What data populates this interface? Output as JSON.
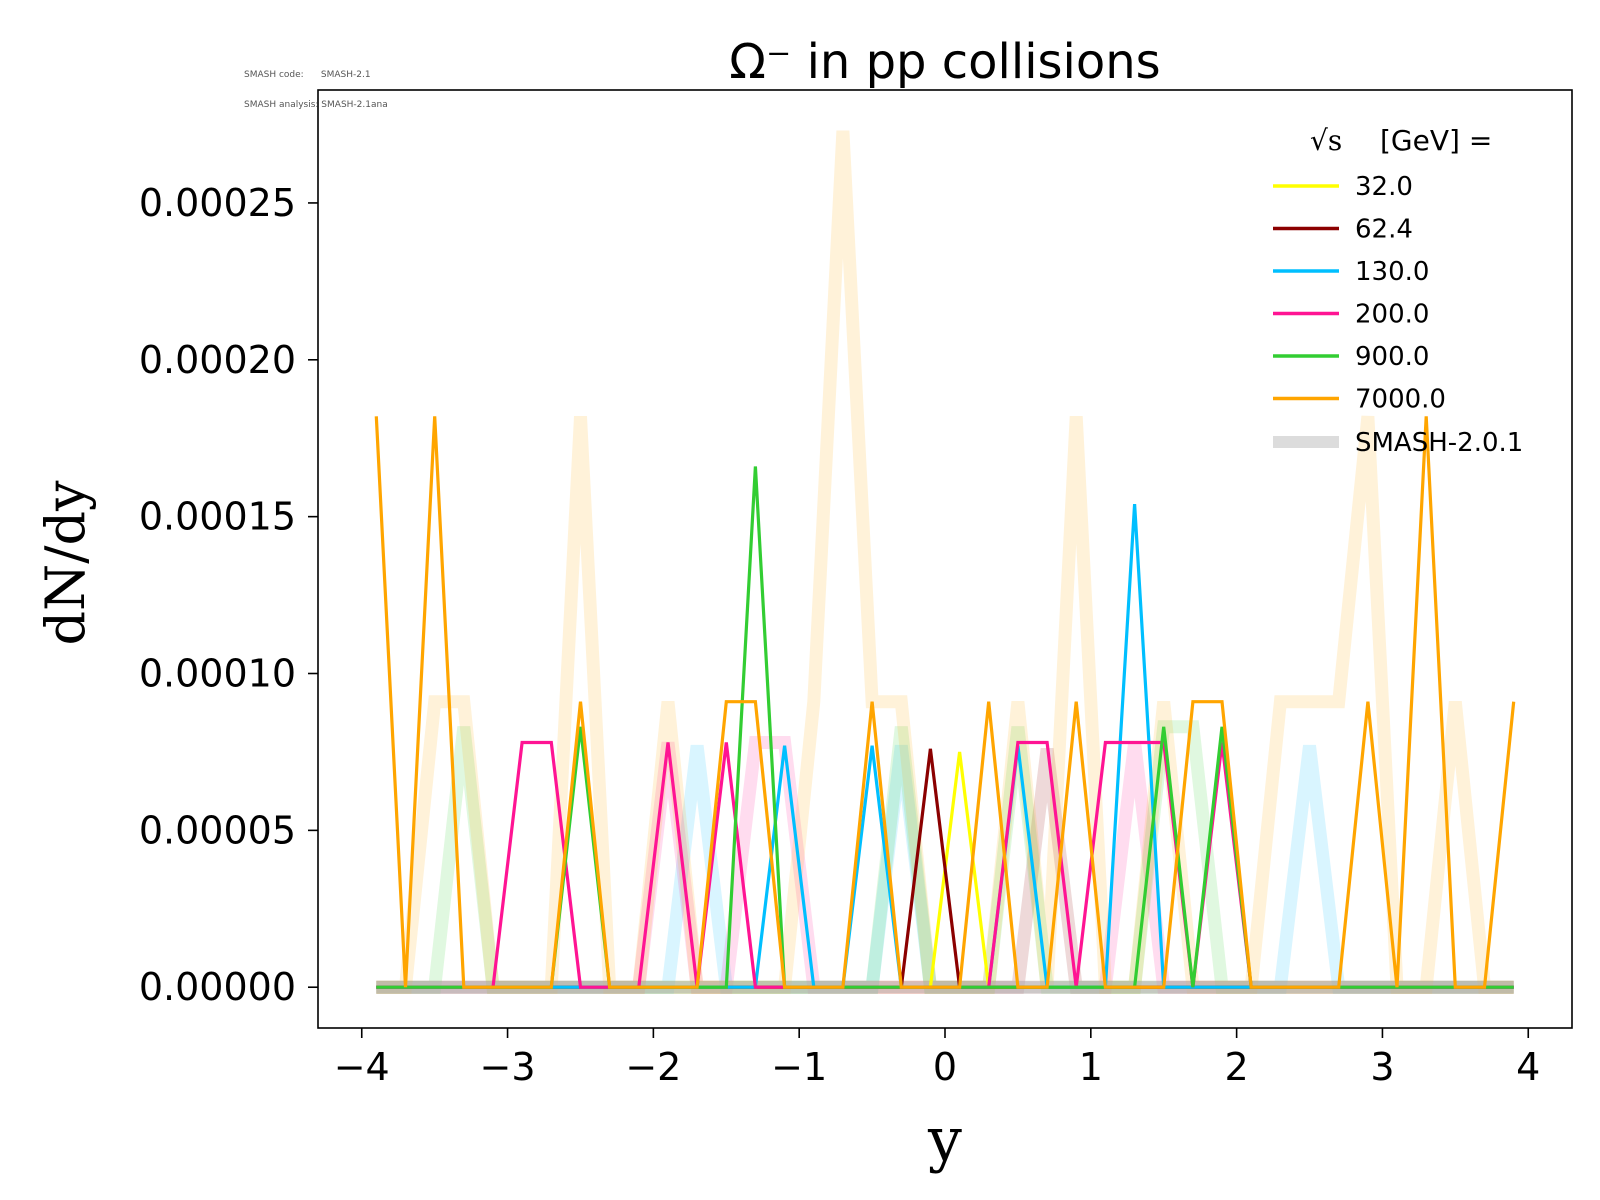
{
  "version_info": {
    "code_line": "SMASH code:      SMASH-2.1",
    "analysis_line": "SMASH analysis: SMASH-2.1ana"
  },
  "chart_data": {
    "type": "line",
    "title": "Ω⁻ in pp collisions",
    "xlabel": "y",
    "ylabel": "dN/dy",
    "xlim": [
      -4.3,
      4.3
    ],
    "ylim": [
      -1.3e-05,
      0.000286
    ],
    "xticks": [
      -4,
      -3,
      -2,
      -1,
      0,
      1,
      2,
      3,
      4
    ],
    "xtick_labels": [
      "−4",
      "−3",
      "−2",
      "−1",
      "0",
      "1",
      "2",
      "3",
      "4"
    ],
    "yticks": [
      0,
      5e-05,
      0.0001,
      0.00015,
      0.0002,
      0.00025
    ],
    "ytick_labels": [
      "0.00000",
      "0.00005",
      "0.00010",
      "0.00015",
      "0.00020",
      "0.00025"
    ],
    "legend": {
      "title_prefix": "√s",
      "title_suffix": "[GeV] =",
      "position": "top-right",
      "reference_label": "SMASH-2.0.1"
    },
    "x": [
      -3.9,
      -3.7,
      -3.5,
      -3.3,
      -3.1,
      -2.9,
      -2.7,
      -2.5,
      -2.3,
      -2.1,
      -1.9,
      -1.7,
      -1.5,
      -1.3,
      -1.1,
      -0.9,
      -0.7,
      -0.5,
      -0.3,
      -0.1,
      0.1,
      0.3,
      0.5,
      0.7,
      0.9,
      1.1,
      1.3,
      1.5,
      1.7,
      1.9,
      2.1,
      2.3,
      2.5,
      2.7,
      2.9,
      3.1,
      3.3,
      3.5,
      3.7,
      3.9
    ],
    "series": [
      {
        "name": "32.0",
        "color": "#ffff00",
        "values": [
          0,
          0,
          0,
          0,
          0,
          0,
          0,
          0,
          0,
          0,
          0,
          0,
          0,
          0,
          0,
          0,
          0,
          0,
          0,
          0,
          7.5e-05,
          0,
          0,
          0,
          0,
          0,
          0,
          0,
          0,
          0,
          0,
          0,
          0,
          0,
          0,
          0,
          0,
          0,
          0,
          0
        ],
        "reference": [
          0,
          0,
          0,
          0,
          0,
          0,
          0,
          0,
          0,
          0,
          0,
          0,
          0,
          0,
          0,
          0,
          0,
          0,
          0,
          0,
          0,
          0,
          0,
          0,
          0,
          0,
          0,
          0,
          0,
          0,
          0,
          0,
          0,
          0,
          0,
          0,
          0,
          0,
          0,
          0
        ]
      },
      {
        "name": "62.4",
        "color": "#8b0000",
        "values": [
          0,
          0,
          0,
          0,
          0,
          0,
          0,
          0,
          0,
          0,
          0,
          0,
          0,
          0,
          0,
          0,
          0,
          0,
          0,
          7.6e-05,
          0,
          0,
          0,
          0,
          0,
          0,
          0,
          0,
          0,
          0,
          0,
          0,
          0,
          0,
          0,
          0,
          0,
          0,
          0,
          0
        ],
        "reference": [
          0,
          0,
          0,
          0,
          0,
          0,
          0,
          0,
          0,
          0,
          0,
          0,
          0,
          0,
          0,
          0,
          0,
          0,
          0,
          0,
          0,
          0,
          0,
          7.6e-05,
          0,
          0,
          0,
          0,
          0,
          0,
          0,
          0,
          0,
          0,
          0,
          0,
          0,
          0,
          0,
          0
        ]
      },
      {
        "name": "130.0",
        "color": "#00bfff",
        "values": [
          0,
          0,
          0,
          0,
          0,
          0,
          0,
          0,
          0,
          0,
          0,
          0,
          0,
          0,
          7.7e-05,
          0,
          0,
          7.7e-05,
          0,
          0,
          0,
          0,
          7.7e-05,
          0,
          0,
          0,
          0.000154,
          0,
          0,
          0,
          0,
          0,
          0,
          0,
          0,
          0,
          0,
          0,
          0,
          0
        ],
        "reference": [
          0,
          0,
          0,
          0,
          0,
          0,
          0,
          0,
          0,
          0,
          0,
          7.7e-05,
          0,
          0,
          0,
          0,
          0,
          0,
          7.7e-05,
          0,
          0,
          0,
          0,
          0,
          0,
          0,
          0,
          0,
          0,
          0,
          0,
          0,
          7.7e-05,
          0,
          0,
          0,
          0,
          0,
          0,
          0
        ]
      },
      {
        "name": "200.0",
        "color": "#ff1493",
        "values": [
          0,
          0,
          0,
          0,
          0,
          7.8e-05,
          7.8e-05,
          0,
          0,
          0,
          7.8e-05,
          0,
          7.8e-05,
          0,
          0,
          0,
          0,
          0,
          0,
          0,
          0,
          0,
          7.8e-05,
          7.8e-05,
          0,
          7.8e-05,
          7.8e-05,
          7.8e-05,
          0,
          7.8e-05,
          0,
          0,
          0,
          0,
          0,
          0,
          0,
          0,
          0,
          0
        ],
        "reference": [
          0,
          0,
          0,
          0,
          0,
          0,
          0,
          0,
          0,
          0,
          7.8e-05,
          0,
          0,
          7.8e-05,
          7.8e-05,
          0,
          0,
          0,
          0,
          0,
          0,
          0,
          0,
          0,
          0,
          0,
          7.8e-05,
          0,
          0,
          0,
          0,
          0,
          0,
          0,
          0,
          0,
          0,
          0,
          0,
          0
        ]
      },
      {
        "name": "900.0",
        "color": "#32cd32",
        "values": [
          0,
          0,
          0,
          0,
          0,
          0,
          0,
          8.3e-05,
          0,
          0,
          0,
          0,
          0,
          0.000166,
          0,
          0,
          0,
          0,
          0,
          0,
          0,
          0,
          0,
          0,
          0,
          0,
          0,
          8.3e-05,
          0,
          8.3e-05,
          0,
          0,
          0,
          0,
          0,
          0,
          0,
          0,
          0,
          0
        ],
        "reference": [
          0,
          0,
          0,
          8.3e-05,
          0,
          0,
          0,
          0,
          0,
          0,
          0,
          0,
          0,
          0,
          0,
          0,
          0,
          0,
          8.3e-05,
          0,
          0,
          0,
          8.3e-05,
          0,
          0,
          0,
          0,
          8.3e-05,
          8.3e-05,
          0,
          0,
          0,
          0,
          0,
          0,
          0,
          0,
          0,
          0,
          0
        ]
      },
      {
        "name": "7000.0",
        "color": "#ffa500",
        "values": [
          0.000182,
          0,
          0.000182,
          0,
          0,
          0,
          0,
          9.1e-05,
          0,
          0,
          0,
          0,
          9.1e-05,
          9.1e-05,
          0,
          0,
          0,
          9.1e-05,
          0,
          0,
          0,
          9.1e-05,
          0,
          0,
          9.1e-05,
          0,
          0,
          0,
          9.1e-05,
          9.1e-05,
          0,
          0,
          0,
          0,
          9.1e-05,
          0,
          0.000182,
          0,
          0,
          9.1e-05
        ],
        "reference": [
          0,
          0,
          9.1e-05,
          9.1e-05,
          0,
          0,
          0,
          0.000182,
          0,
          0,
          9.1e-05,
          0,
          0,
          0,
          0,
          9.1e-05,
          0.000273,
          9.1e-05,
          9.1e-05,
          0,
          0,
          0,
          9.1e-05,
          0,
          0.000182,
          0,
          0,
          9.1e-05,
          0,
          0,
          0,
          9.1e-05,
          9.1e-05,
          9.1e-05,
          0.000182,
          0,
          0,
          9.1e-05,
          0,
          0
        ]
      }
    ]
  }
}
